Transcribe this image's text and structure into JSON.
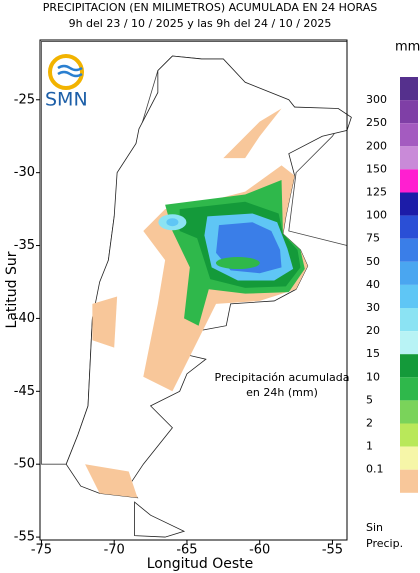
{
  "header": {
    "title": "PRECIPITACION (EN MILIMETROS) ACUMULADA EN 24 HORAS",
    "subtitle": "9h del 23 / 10 / 2025  y las 9h del 24 / 10 / 2025"
  },
  "logo": "SMN",
  "map": {
    "x_label": "Longitud Oeste",
    "y_label": "Latitud Sur",
    "xlim": [
      -75.1,
      -54
    ],
    "ylim": [
      -55.2,
      -20.9
    ],
    "xticks": [
      -75,
      -70,
      -65,
      -60,
      -55
    ],
    "yticks": [
      -25,
      -30,
      -35,
      -40,
      -45,
      -50,
      -55
    ],
    "annotation": [
      "Precipitación acumulada",
      "en 24h (mm)"
    ]
  },
  "legend": {
    "unit": "mm",
    "labels": [
      "300",
      "250",
      "200",
      "150",
      "125",
      "100",
      "75",
      "50",
      "40",
      "30",
      "20",
      "15",
      "10",
      "5",
      "2",
      "1",
      "0.1"
    ],
    "colors": [
      "#55308d",
      "#7f3fa6",
      "#a45bc0",
      "#c98ad8",
      "#ff1fd0",
      "#1c1ca8",
      "#2a4fd6",
      "#3a7ee8",
      "#4aa6f0",
      "#5fc6f5",
      "#8be3f3",
      "#b8f3f5",
      "#149a3a",
      "#2fb84b",
      "#7ad35a",
      "#b9e85a",
      "#f6f6a8",
      "#f8c79a"
    ],
    "no_precip": [
      "Sin",
      "Precip."
    ]
  }
}
